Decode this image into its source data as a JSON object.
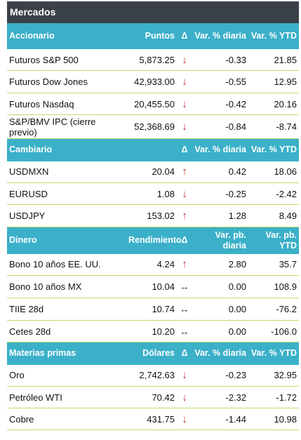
{
  "title": "Mercados",
  "sections": [
    {
      "headers": [
        "Accionario",
        "Puntos",
        "Δ",
        "Var. % diaria",
        "Var. % YTD"
      ],
      "rows": [
        {
          "name": "Futuros S&P 500",
          "value": "5,873.25",
          "dir": "down",
          "daily": "-0.33",
          "ytd": "21.85"
        },
        {
          "name": "Futuros Dow Jones",
          "value": "42,933.00",
          "dir": "down",
          "daily": "-0.55",
          "ytd": "12.95"
        },
        {
          "name": "Futuros Nasdaq",
          "value": "20,455.50",
          "dir": "down",
          "daily": "-0.42",
          "ytd": "20.16"
        },
        {
          "name": "S&P/BMV IPC (cierre previo)",
          "value": "52,368.69",
          "dir": "down",
          "daily": "-0.84",
          "ytd": "-8.74"
        }
      ]
    },
    {
      "headers": [
        "Cambiario",
        "",
        "Δ",
        "Var. % diaria",
        "Var. % YTD"
      ],
      "rows": [
        {
          "name": "USDMXN",
          "value": "20.04",
          "dir": "up",
          "daily": "0.42",
          "ytd": "18.06"
        },
        {
          "name": "EURUSD",
          "value": "1.08",
          "dir": "down",
          "daily": "-0.25",
          "ytd": "-2.42"
        },
        {
          "name": "USDJPY",
          "value": "153.02",
          "dir": "up",
          "daily": "1.28",
          "ytd": "8.49"
        }
      ]
    },
    {
      "headers": [
        "Dinero",
        "Rendimiento",
        "Δ",
        "Var. pb. diaria",
        "Var. pb. YTD"
      ],
      "rows": [
        {
          "name": "Bono 10 años EE. UU.",
          "value": "4.24",
          "dir": "up",
          "daily": "2.80",
          "ytd": "35.7"
        },
        {
          "name": "Bono 10 años MX",
          "value": "10.04",
          "dir": "flat",
          "daily": "0.00",
          "ytd": "108.9"
        },
        {
          "name": "TIIE 28d",
          "value": "10.74",
          "dir": "flat",
          "daily": "0.00",
          "ytd": "-76.2"
        },
        {
          "name": "Cetes 28d",
          "value": "10.20",
          "dir": "flat",
          "daily": "0.00",
          "ytd": "-106.0"
        }
      ]
    },
    {
      "headers": [
        "Materias primas",
        "Dólares",
        "Δ",
        "Var. % diaria",
        "Var. % YTD"
      ],
      "rows": [
        {
          "name": "Oro",
          "value": "2,742.63",
          "dir": "down",
          "daily": "-0.23",
          "ytd": "32.95"
        },
        {
          "name": "Petróleo WTI",
          "value": "70.42",
          "dir": "down",
          "daily": "-2.32",
          "ytd": "-1.72"
        },
        {
          "name": "Cobre",
          "value": "431.75",
          "dir": "down",
          "daily": "-1.44",
          "ytd": "10.98"
        }
      ]
    }
  ],
  "icons": {
    "down": "arrow-down-icon",
    "up": "arrow-up-icon",
    "flat": "arrow-left-right-icon"
  },
  "colors": {
    "title_bg": "#3a4149",
    "header_bg": "#3bb0c9",
    "arrow": "#c0272d",
    "row_border": "#c6d96a"
  }
}
